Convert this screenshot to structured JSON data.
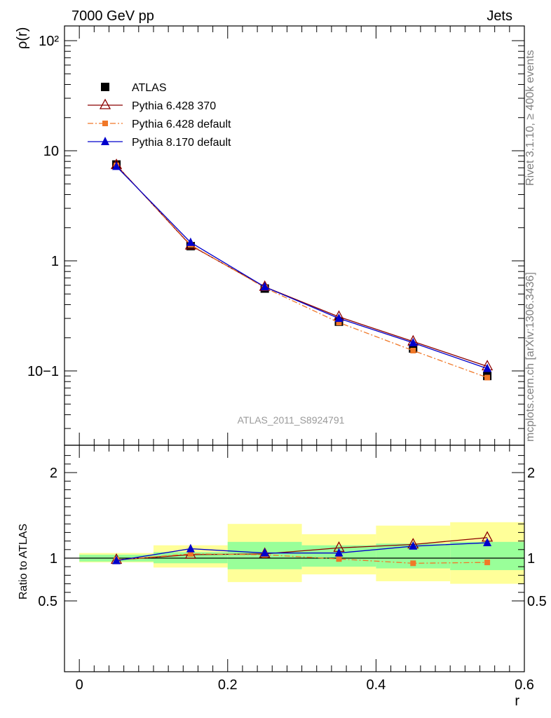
{
  "header": {
    "left_title": "7000 GeV pp",
    "right_title": "Jets"
  },
  "side_labels": {
    "rivet": "Rivet 3.1.10, ≥ 400k events",
    "mcplots": "mcplots.cern.ch [arXiv:1306.3436]"
  },
  "analysis_id": "ATLAS_2011_S8924791",
  "chart_data": [
    {
      "type": "line",
      "panel": "main",
      "ylabel": "ρ(r)",
      "yscale": "log",
      "ylim": [
        0.025,
        130
      ],
      "xlim": [
        -0.02,
        0.6
      ],
      "ytick_labels": [
        "10−1",
        "1",
        "10",
        "10²"
      ],
      "x": [
        0.05,
        0.15,
        0.25,
        0.35,
        0.45,
        0.55
      ],
      "legend_position": "upper-left",
      "series": [
        {
          "name": "ATLAS",
          "marker": "square-filled",
          "color": "#000000",
          "values": [
            7.5,
            1.36,
            0.56,
            0.28,
            0.16,
            0.09
          ]
        },
        {
          "name": "Pythia 6.428 370",
          "marker": "triangle-open",
          "color": "#8b0000",
          "values": [
            7.4,
            1.38,
            0.58,
            0.31,
            0.185,
            0.11
          ]
        },
        {
          "name": "Pythia 6.428 default",
          "marker": "square-small",
          "color": "#f07828",
          "dash": "dashdot",
          "values": [
            7.35,
            1.4,
            0.57,
            0.275,
            0.153,
            0.087
          ]
        },
        {
          "name": "Pythia 8.170 default",
          "marker": "triangle-filled",
          "color": "#0000cc",
          "values": [
            7.2,
            1.47,
            0.58,
            0.3,
            0.18,
            0.105
          ]
        }
      ]
    },
    {
      "type": "line",
      "panel": "ratio",
      "ylabel": "Ratio to ATLAS",
      "xlabel": "r",
      "ylim": [
        0.4,
        2.3
      ],
      "xlim": [
        -0.02,
        0.6
      ],
      "ytick_labels": [
        "0.5",
        "1",
        "2"
      ],
      "xtick_labels": [
        "0",
        "0.2",
        "0.4",
        "0.6"
      ],
      "reference_line": 1,
      "bands": {
        "bin_edges": [
          0,
          0.1,
          0.2,
          0.3,
          0.4,
          0.5,
          0.6
        ],
        "inner_green": [
          [
            0.96,
            1.04
          ],
          [
            0.94,
            1.07
          ],
          [
            0.87,
            1.19
          ],
          [
            0.9,
            1.15
          ],
          [
            0.88,
            1.17
          ],
          [
            0.86,
            1.19
          ]
        ],
        "outer_yellow": [
          [
            0.95,
            1.06
          ],
          [
            0.89,
            1.15
          ],
          [
            0.72,
            1.4
          ],
          [
            0.81,
            1.28
          ],
          [
            0.73,
            1.38
          ],
          [
            0.7,
            1.42
          ]
        ],
        "inner_color": "#99ff99",
        "outer_color": "#ffff99"
      },
      "x": [
        0.05,
        0.15,
        0.25,
        0.35,
        0.45,
        0.55
      ],
      "series": [
        {
          "name": "Pythia 6.428 370",
          "color": "#8b0000",
          "values": [
            0.98,
            1.04,
            1.05,
            1.12,
            1.16,
            1.24
          ]
        },
        {
          "name": "Pythia 6.428 default",
          "color": "#f07828",
          "values": [
            0.98,
            1.05,
            1.04,
            0.99,
            0.94,
            0.95
          ]
        },
        {
          "name": "Pythia 8.170 default",
          "color": "#0000cc",
          "values": [
            0.97,
            1.11,
            1.06,
            1.06,
            1.14,
            1.18
          ]
        }
      ]
    }
  ]
}
